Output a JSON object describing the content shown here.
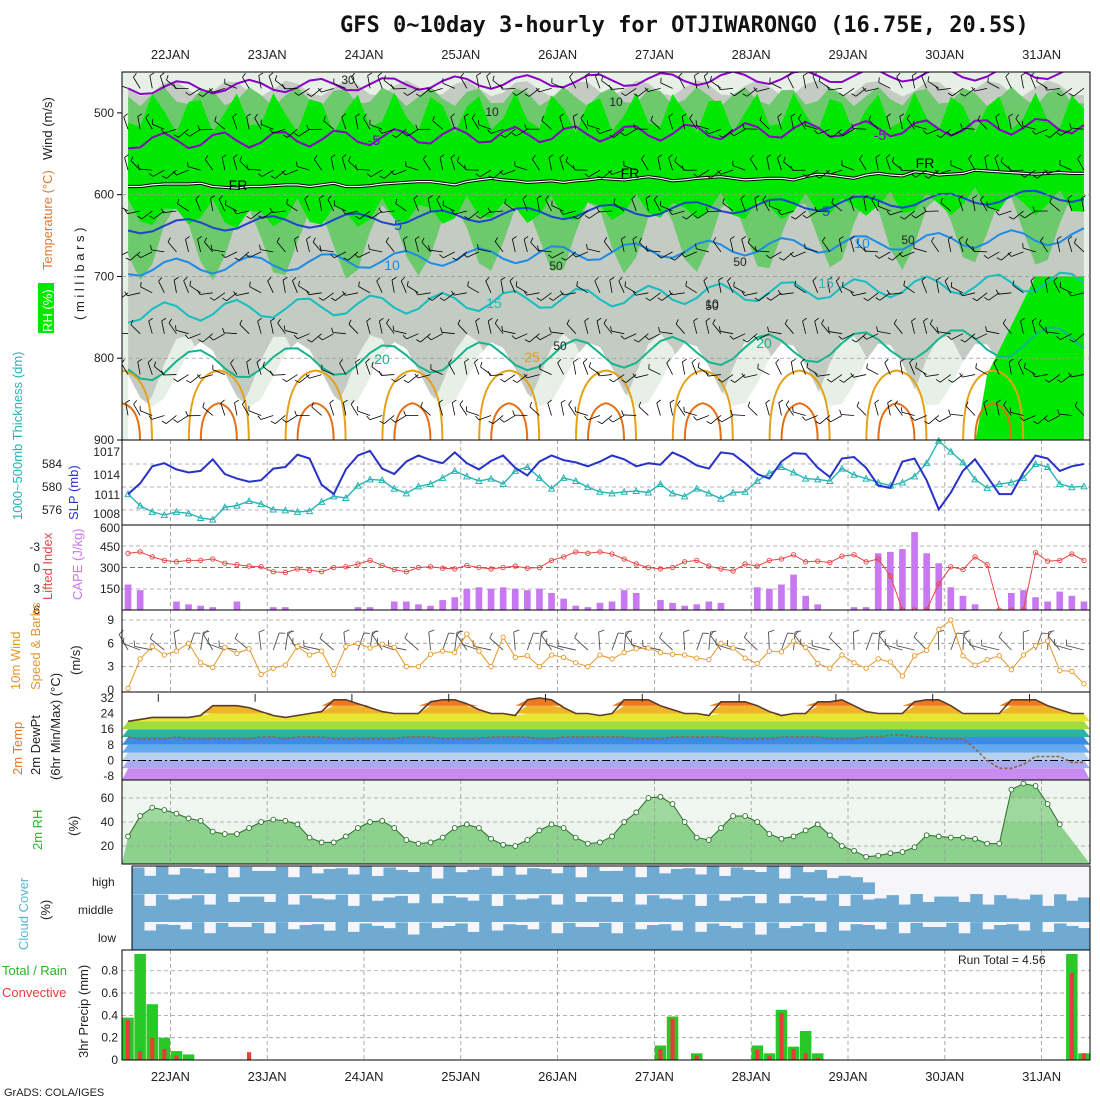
{
  "title": "GFS 0~10day 3-hourly for OTJIWARONGO (16.75E, 20.5S)",
  "credit": "GrADS: COLA/IGES",
  "dates": [
    "22JAN",
    "23JAN",
    "24JAN",
    "25JAN",
    "26JAN",
    "27JAN",
    "28JAN",
    "29JAN",
    "30JAN",
    "31JAN"
  ],
  "colors": {
    "green_bright": "#00e800",
    "green_mid": "#6cc96c",
    "green_dark": "#1e9e1e",
    "gray": "#c3cbc3",
    "pale": "#e6f0e6",
    "wind": "#8b00c8",
    "temp_blue": "#1e46c8",
    "temp_sky": "#1e8ce6",
    "temp_teal": "#14bebe",
    "temp_green": "#14b48c",
    "temp_orange": "#e6a014",
    "temp_dark_orange": "#e66e14",
    "thickness": "#28b4b4",
    "slp": "#2832c8",
    "lifted": "#e64646",
    "cape": "#c878f0",
    "wind10": "#e69628",
    "barb": "#505050",
    "rh": "#28b428",
    "cloud": "#6eaad2",
    "cloud_empty": "#f5f5fa",
    "cloud_mid_bg": "#e0e0e0",
    "precip_total": "#28c828",
    "precip_conv": "#e63c3c"
  },
  "panels": {
    "upper": {
      "ylabel_rh": "RH (%)",
      "ylabel_temp": "Temperature (°C)",
      "ylabel_wind": "Wind (m/s)",
      "ylabel_p": "( m i l l i b a r s )",
      "pressure_ticks": [
        "500",
        "600",
        "700",
        "800",
        "900"
      ],
      "contour_labels": [
        "-5",
        "-5",
        "FR",
        "FR",
        "FR",
        "5",
        "5",
        "10",
        "10",
        "15",
        "15",
        "20",
        "20",
        "25"
      ],
      "rh_labels": [
        "30",
        "10",
        "10",
        "50",
        "50",
        "50",
        "50",
        "50",
        "10"
      ]
    },
    "slp": {
      "ylabel_left": "1000~500mb Thickness (dm)",
      "ylabel_right": "SLP (mb)",
      "left_ticks": [
        "584",
        "580",
        "576"
      ],
      "right_ticks": [
        "1017",
        "1014",
        "1011",
        "1008"
      ]
    },
    "cape": {
      "ylabel_left": "Lifted Index",
      "ylabel_right": "CAPE (J/kg)",
      "left_ticks": [
        "-3",
        "0",
        "3",
        "6"
      ],
      "right_ticks": [
        "600",
        "450",
        "300",
        "150"
      ]
    },
    "wind10": {
      "ylabel_a": "10m Wind",
      "ylabel_b": "Speed & Barbs",
      "ylabel_c": "(m/s)",
      "ticks": [
        "9",
        "6",
        "3",
        "0"
      ]
    },
    "temp": {
      "ylabel_a": "2m Temp",
      "ylabel_b": "2m DewPt",
      "ylabel_c": "(6hr Min/Max) (°C)",
      "ticks": [
        "32",
        "24",
        "16",
        "8",
        "0",
        "-8"
      ]
    },
    "rh": {
      "ylabel_a": "2m RH",
      "ylabel_b": "(%)",
      "ticks": [
        "60",
        "40",
        "20"
      ]
    },
    "cloud": {
      "ylabel_a": "Cloud Cover",
      "ylabel_b": "(%)",
      "rows": [
        "high",
        "middle",
        "low"
      ]
    },
    "precip": {
      "ylabel_a": "Total / Rain",
      "ylabel_b": "Convective",
      "ylabel_c": "3hr Precip (mm)",
      "ticks": [
        "0.8",
        "0.6",
        "0.4",
        "0.2",
        "0"
      ],
      "run_total": "Run Total = 4.56"
    }
  },
  "chart_data": {
    "type": "meteogram",
    "time_steps": 80,
    "step_hours": 3,
    "dates": [
      "22JAN",
      "23JAN",
      "24JAN",
      "25JAN",
      "26JAN",
      "27JAN",
      "28JAN",
      "29JAN",
      "30JAN",
      "31JAN"
    ],
    "x_axis_hint": "first tick 22JAN at step 4",
    "pressure_range_mb": [
      450,
      900
    ],
    "freezing_level_mb": [
      590,
      590,
      588,
      587,
      587,
      587,
      586,
      590,
      591,
      592,
      590,
      590,
      589,
      588,
      588,
      590,
      588,
      586,
      590,
      590,
      589,
      587,
      586,
      585,
      584,
      584,
      586,
      588,
      584,
      582,
      580,
      582,
      583,
      585,
      584,
      583,
      585,
      583,
      582,
      580,
      581,
      582,
      580,
      578,
      580,
      583,
      582,
      580,
      579,
      578,
      580,
      582,
      581,
      580,
      580,
      582,
      578,
      575,
      576,
      578,
      580,
      576,
      574,
      576,
      577,
      572,
      573,
      576,
      575,
      574,
      570,
      571,
      572,
      573,
      574,
      575,
      574,
      573,
      574,
      574
    ],
    "thickness_dm": [
      578.5,
      577.0,
      576.2,
      575.8,
      576.2,
      576.0,
      575.4,
      575.2,
      576.8,
      577.0,
      577.6,
      577.2,
      576.5,
      576.4,
      576.2,
      576.3,
      577.5,
      578.2,
      578.0,
      579.6,
      580.4,
      580.3,
      579.2,
      578.6,
      579.5,
      579.8,
      580.6,
      581.5,
      580.8,
      580.2,
      580.5,
      579.8,
      581.5,
      582.0,
      580.6,
      579.2,
      580.6,
      580.2,
      579.4,
      578.8,
      578.6,
      578.8,
      578.9,
      578.7,
      579.8,
      578.6,
      578.2,
      579.2,
      578.6,
      577.9,
      578.7,
      578.8,
      580.2,
      581.2,
      582.0,
      581.3,
      580.5,
      580.4,
      580.2,
      581.8,
      581.0,
      580.5,
      580.0,
      579.6,
      580.0,
      580.8,
      582.5,
      585.4,
      584.0,
      582.6,
      580.4,
      579.3,
      579.8,
      580.0,
      580.6,
      582.4,
      582.0,
      579.8,
      579.4,
      579.5
    ],
    "slp_mb": [
      1011.0,
      1012.4,
      1014.6,
      1015.0,
      1014.2,
      1013.8,
      1014.0,
      1015.5,
      1013.6,
      1013.0,
      1012.6,
      1012.8,
      1014.3,
      1014.5,
      1016.1,
      1015.6,
      1012.2,
      1011.0,
      1014.2,
      1016.0,
      1016.6,
      1014.3,
      1013.6,
      1015.2,
      1016.0,
      1015.4,
      1015.0,
      1016.4,
      1015.0,
      1014.2,
      1015.3,
      1016.0,
      1014.4,
      1013.4,
      1015.2,
      1016.0,
      1015.4,
      1015.1,
      1014.6,
      1015.2,
      1016.0,
      1015.5,
      1014.6,
      1015.0,
      1014.8,
      1016.4,
      1015.7,
      1014.7,
      1014.3,
      1016.4,
      1016.2,
      1015.0,
      1013.6,
      1013.0,
      1015.2,
      1016.3,
      1016.2,
      1014.4,
      1013.2,
      1015.6,
      1015.8,
      1014.4,
      1012.1,
      1011.8,
      1015.2,
      1015.6,
      1012.8,
      1009.0,
      1011.2,
      1014.0,
      1015.5,
      1013.3,
      1011.0,
      1011.0,
      1013.8,
      1016.0,
      1015.6,
      1014.0,
      1014.6,
      1014.9
    ],
    "lifted_index": [
      -2.0,
      -2.2,
      -1.5,
      -1.0,
      -0.8,
      -1.0,
      -1.0,
      -1.2,
      -0.6,
      -0.4,
      -0.2,
      -0.1,
      0.6,
      0.7,
      0.2,
      0.4,
      0.6,
      0.0,
      -0.1,
      -0.5,
      -1.0,
      -0.3,
      0.3,
      0.6,
      0.0,
      -0.1,
      0.1,
      0.2,
      -0.3,
      0.0,
      0.2,
      0.0,
      -0.2,
      0.1,
      0.0,
      -1.0,
      -1.5,
      -2.2,
      -2.0,
      -2.2,
      -1.9,
      -1.2,
      -0.5,
      0.0,
      0.2,
      0.0,
      -0.8,
      -1.0,
      -0.2,
      0.2,
      0.5,
      -0.5,
      -0.2,
      -1.0,
      -1.2,
      -1.8,
      -0.8,
      -0.9,
      -0.7,
      -1.6,
      -1.8,
      -0.8,
      -1.2,
      1.2,
      6.0,
      6.0,
      6.0,
      2.3,
      -0.1,
      0.3,
      -1.5,
      -0.4,
      6.0,
      6.0,
      6.0,
      -2.1,
      -0.9,
      -1.0,
      -1.9,
      -1.0,
      -0.5,
      -1.2,
      -1.1,
      -1.8,
      -0.4,
      1.5,
      2.2,
      2.5
    ],
    "cape_jkg": [
      180,
      140,
      0,
      0,
      60,
      40,
      30,
      20,
      0,
      60,
      0,
      0,
      20,
      20,
      0,
      0,
      0,
      0,
      0,
      20,
      20,
      0,
      60,
      60,
      40,
      30,
      70,
      90,
      150,
      160,
      150,
      160,
      150,
      140,
      150,
      120,
      80,
      30,
      20,
      50,
      60,
      140,
      120,
      0,
      70,
      50,
      30,
      40,
      60,
      50,
      0,
      0,
      160,
      150,
      180,
      250,
      100,
      40,
      0,
      0,
      20,
      20,
      400,
      410,
      430,
      550,
      400,
      330,
      160,
      100,
      40,
      0,
      0,
      120,
      140,
      90,
      60,
      130,
      100,
      60,
      0,
      0,
      0,
      20,
      0,
      30,
      30,
      0,
      0,
      30,
      0,
      0,
      60,
      140,
      160,
      180,
      70,
      10,
      0,
      30
    ],
    "wind10_ms": [
      0.2,
      4.0,
      5.6,
      4.5,
      5.0,
      6.0,
      3.5,
      2.9,
      5.5,
      4.7,
      5.3,
      2.0,
      2.8,
      3.2,
      5.6,
      4.5,
      5.0,
      2.0,
      5.6,
      6.0,
      5.4,
      5.9,
      5.5,
      3.0,
      3.0,
      4.6,
      5.0,
      4.8,
      7.2,
      5.0,
      3.0,
      6.8,
      4.2,
      4.4,
      3.0,
      4.5,
      4.2,
      3.5,
      3.0,
      4.5,
      4.0,
      4.8,
      5.3,
      5.4,
      4.8,
      4.6,
      4.5,
      4.1,
      3.9,
      6.0,
      5.4,
      4.1,
      3.4,
      5.0,
      4.9,
      6.3,
      5.5,
      3.4,
      2.8,
      4.5,
      3.5,
      2.8,
      4.0,
      3.6,
      1.8,
      4.4,
      5.1,
      7.8,
      9.0,
      4.4,
      3.2,
      3.9,
      4.4,
      2.6,
      4.5,
      5.7,
      6.3,
      2.5,
      2.4,
      0.8
    ],
    "temp_2m_c": [
      20,
      21,
      22,
      22,
      22,
      22,
      23,
      28,
      28,
      28,
      27,
      25,
      23,
      22,
      23,
      24,
      25,
      31,
      31,
      29,
      27,
      25,
      24,
      24,
      24,
      30,
      31,
      31,
      29,
      26,
      24,
      24,
      23,
      31,
      32,
      31,
      27,
      24,
      24,
      23,
      24,
      31,
      31,
      31,
      28,
      26,
      24,
      24,
      23,
      30,
      30,
      30,
      28,
      25,
      23,
      24,
      24,
      30,
      30,
      31,
      28,
      25,
      24,
      24,
      24,
      30,
      31,
      31,
      28,
      24,
      24,
      24,
      24,
      31,
      31,
      31,
      28,
      26,
      24,
      24,
      24,
      30,
      31,
      32,
      29,
      27,
      26,
      25,
      24,
      24,
      31,
      34,
      35,
      32,
      27,
      25,
      25,
      25,
      33,
      34,
      32,
      21,
      21,
      21,
      19,
      20
    ],
    "dewpt_2m_c": [
      12,
      11,
      11,
      11,
      12,
      11,
      11,
      11,
      11,
      11,
      11,
      12,
      12,
      11,
      12,
      12,
      12,
      11,
      11,
      11,
      11,
      11,
      11,
      12,
      12,
      12,
      11,
      11,
      11,
      11,
      12,
      12,
      12,
      12,
      11,
      11,
      12,
      12,
      12,
      12,
      12,
      12,
      11,
      11,
      11,
      12,
      12,
      12,
      12,
      12,
      11,
      11,
      11,
      11,
      12,
      12,
      12,
      12,
      11,
      11,
      11,
      12,
      12,
      13,
      13,
      12,
      12,
      11,
      11,
      11,
      6,
      0,
      -4,
      -4,
      -2,
      2,
      2,
      2,
      -1,
      -1,
      2,
      5,
      8,
      10,
      13,
      14,
      14,
      11
    ],
    "rh_2m_pct": [
      28,
      45,
      52,
      50,
      47,
      43,
      41,
      32,
      30,
      30,
      35,
      40,
      42,
      41,
      38,
      27,
      23,
      23,
      28,
      35,
      40,
      41,
      35,
      25,
      22,
      23,
      27,
      35,
      38,
      35,
      26,
      21,
      20,
      25,
      33,
      38,
      35,
      27,
      22,
      23,
      28,
      40,
      48,
      60,
      61,
      55,
      40,
      27,
      25,
      35,
      45,
      45,
      40,
      30,
      26,
      28,
      33,
      38,
      29,
      20,
      16,
      11,
      12,
      14,
      15,
      19,
      29,
      28,
      27,
      27,
      26,
      22,
      22,
      67,
      72,
      70,
      55,
      38
    ],
    "cloud_cover": {
      "high_pct": [
        100,
        100,
        100,
        100,
        100,
        100,
        100,
        100,
        100,
        100,
        100,
        100,
        100,
        100,
        100,
        100,
        100,
        100,
        100,
        100,
        100,
        100,
        100,
        100,
        100,
        100,
        100,
        100,
        100,
        100,
        100,
        100,
        100,
        100,
        100,
        100,
        100,
        100,
        100,
        100,
        100,
        100,
        100,
        100,
        100,
        100,
        100,
        100,
        100,
        100,
        100,
        100,
        100,
        100,
        100,
        100,
        100,
        100,
        60,
        100,
        60,
        60,
        0,
        0,
        0,
        0,
        0,
        0,
        0,
        0,
        0,
        0,
        0,
        0,
        0,
        0,
        0,
        0,
        0,
        0
      ],
      "middle_pct": [
        100,
        100,
        100,
        100,
        100,
        100,
        100,
        100,
        100,
        100,
        100,
        100,
        100,
        100,
        100,
        100,
        100,
        100,
        100,
        100,
        100,
        100,
        100,
        100,
        100,
        100,
        100,
        100,
        100,
        100,
        100,
        100,
        100,
        100,
        100,
        100,
        100,
        100,
        100,
        100,
        100,
        100,
        100,
        100,
        100,
        100,
        100,
        100,
        100,
        100,
        100,
        100,
        100,
        100,
        100,
        100,
        100,
        100,
        100,
        100,
        100,
        100,
        100,
        100,
        100,
        100,
        100,
        100,
        100,
        100,
        100,
        100,
        100,
        100,
        100,
        100,
        100,
        100,
        100,
        100
      ],
      "low_pct": [
        100,
        100,
        100,
        100,
        100,
        100,
        100,
        100,
        100,
        100,
        100,
        100,
        100,
        100,
        100,
        100,
        100,
        100,
        100,
        100,
        100,
        100,
        100,
        100,
        100,
        100,
        100,
        100,
        100,
        100,
        100,
        100,
        100,
        100,
        100,
        100,
        100,
        100,
        100,
        100,
        100,
        100,
        100,
        100,
        100,
        100,
        100,
        100,
        100,
        100,
        100,
        100,
        100,
        100,
        100,
        100,
        100,
        100,
        100,
        100,
        100,
        100,
        100,
        100,
        100,
        100,
        100,
        100,
        100,
        100,
        100,
        100,
        100,
        100,
        100,
        100,
        100,
        100,
        100,
        100
      ]
    },
    "precip_3hr_mm": {
      "ylim": [
        0,
        0.95
      ],
      "total": [
        0.38,
        0.95,
        0.5,
        0.2,
        0.08,
        0.05,
        0,
        0,
        0,
        0,
        0,
        0,
        0,
        0,
        0,
        0,
        0,
        0,
        0,
        0,
        0,
        0,
        0,
        0,
        0,
        0,
        0,
        0,
        0,
        0,
        0,
        0,
        0,
        0,
        0,
        0,
        0,
        0,
        0,
        0,
        0,
        0,
        0,
        0,
        0.13,
        0.39,
        0,
        0.06,
        0,
        0,
        0,
        0,
        0.13,
        0.06,
        0.45,
        0.12,
        0.26,
        0.06,
        0,
        0,
        0,
        0,
        0,
        0,
        0,
        0,
        0,
        0,
        0,
        0,
        0,
        0,
        0,
        0,
        0,
        0,
        0,
        0,
        0.95,
        0.06,
        0,
        0,
        0,
        0
      ],
      "convective": [
        0.36,
        0.08,
        0.2,
        0.1,
        0.04,
        0,
        0,
        0,
        0,
        0,
        0.07,
        0,
        0,
        0,
        0,
        0,
        0,
        0,
        0,
        0,
        0,
        0,
        0,
        0,
        0,
        0,
        0,
        0,
        0,
        0,
        0,
        0,
        0,
        0,
        0,
        0,
        0,
        0,
        0,
        0,
        0,
        0,
        0,
        0,
        0.1,
        0.37,
        0,
        0.04,
        0,
        0,
        0,
        0,
        0.09,
        0.04,
        0.42,
        0.1,
        0.06,
        0.02,
        0,
        0,
        0,
        0,
        0,
        0,
        0,
        0,
        0,
        0,
        0,
        0,
        0,
        0,
        0,
        0,
        0,
        0,
        0,
        0,
        0.78,
        0.06,
        0,
        0,
        0.07
      ],
      "run_total": 4.56
    }
  }
}
